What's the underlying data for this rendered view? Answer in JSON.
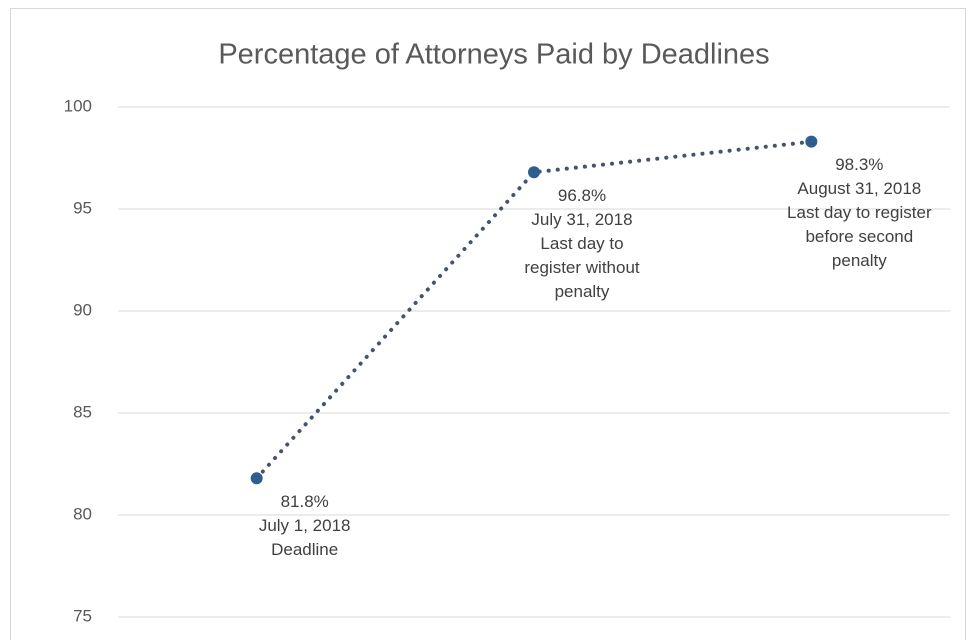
{
  "chart_data": {
    "type": "line",
    "title": "Percentage of Attorneys Paid by Deadlines",
    "categories": [
      "July 1, 2018",
      "July 31, 2018",
      "August 31, 2018"
    ],
    "values": [
      81.8,
      96.8,
      98.3
    ],
    "value_labels": [
      "81.8%",
      "96.8%",
      "98.3%"
    ],
    "descriptions": [
      [
        "Deadline"
      ],
      [
        "Last day to",
        "register without",
        "penalty"
      ],
      [
        "Last day to register",
        "before second",
        "penalty"
      ]
    ],
    "line_color": "#44546a",
    "marker_color": "#2e5e8f",
    "ylim": [
      75,
      100
    ],
    "yticks": [
      75,
      80,
      85,
      90,
      95,
      100
    ],
    "grid": true
  }
}
